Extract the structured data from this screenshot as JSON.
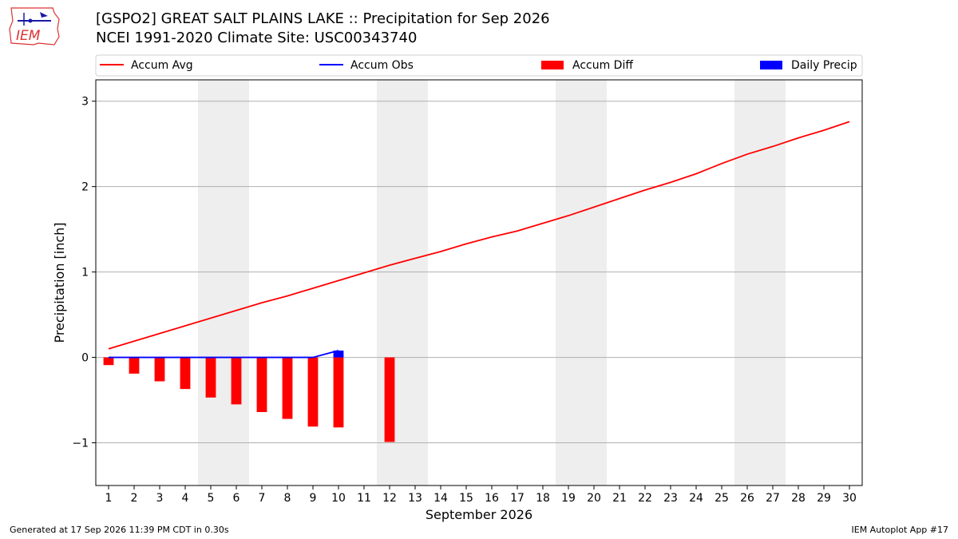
{
  "header": {
    "title_line1": "[GSPO2] GREAT SALT PLAINS LAKE :: Precipitation for Sep 2026",
    "title_line2": "NCEI 1991-2020 Climate Site: USC00343740"
  },
  "logo": {
    "text": "IEM"
  },
  "footer": {
    "generated": "Generated at 17 Sep 2026 11:39 PM CDT in 0.30s",
    "app": "IEM Autoplot App #17"
  },
  "colors": {
    "avg": "#ff0000",
    "obs": "#0000ff",
    "diff": "#ff0000",
    "daily": "#0000ff",
    "weekend": "#eeeeee",
    "grid": "#b0b0b0"
  },
  "chart_data": {
    "type": "line",
    "xlabel": "September 2026",
    "ylabel": "Precipitation [inch]",
    "xlim": [
      0.5,
      30.5
    ],
    "ylim": [
      -1.5,
      3.25
    ],
    "yticks": [
      -1,
      0,
      1,
      2,
      3
    ],
    "ytick_labels": [
      "−1",
      "0",
      "1",
      "2",
      "3"
    ],
    "days": [
      1,
      2,
      3,
      4,
      5,
      6,
      7,
      8,
      9,
      10,
      11,
      12,
      13,
      14,
      15,
      16,
      17,
      18,
      19,
      20,
      21,
      22,
      23,
      24,
      25,
      26,
      27,
      28,
      29,
      30
    ],
    "weekend_days": [
      5,
      6,
      12,
      13,
      19,
      20,
      26,
      27
    ],
    "legend": {
      "placement": "top",
      "entries": [
        "Accum Avg",
        "Accum Obs",
        "Accum Diff",
        "Daily Precip"
      ]
    },
    "grid": "horizontal",
    "series": [
      {
        "name": "Accum Avg",
        "type": "line",
        "x": [
          1,
          2,
          3,
          4,
          5,
          6,
          7,
          8,
          9,
          10,
          11,
          12,
          13,
          14,
          15,
          16,
          17,
          18,
          19,
          20,
          21,
          22,
          23,
          24,
          25,
          26,
          27,
          28,
          29,
          30
        ],
        "values": [
          0.1,
          0.19,
          0.28,
          0.37,
          0.46,
          0.55,
          0.64,
          0.72,
          0.81,
          0.9,
          0.99,
          1.08,
          1.16,
          1.24,
          1.33,
          1.41,
          1.48,
          1.57,
          1.66,
          1.76,
          1.86,
          1.96,
          2.05,
          2.15,
          2.27,
          2.38,
          2.47,
          2.57,
          2.66,
          2.76
        ]
      },
      {
        "name": "Accum Obs",
        "type": "line",
        "x": [
          1,
          2,
          3,
          4,
          5,
          6,
          7,
          8,
          9,
          10
        ],
        "values": [
          0,
          0,
          0,
          0,
          0,
          0,
          0,
          0,
          0,
          0.08
        ]
      },
      {
        "name": "Accum Diff",
        "type": "bar",
        "x": [
          1,
          2,
          3,
          4,
          5,
          6,
          7,
          8,
          9,
          10,
          12
        ],
        "values": [
          -0.09,
          -0.19,
          -0.28,
          -0.37,
          -0.47,
          -0.55,
          -0.64,
          -0.72,
          -0.81,
          -0.82,
          -0.99
        ]
      },
      {
        "name": "Daily Precip",
        "type": "bar",
        "x": [
          10
        ],
        "values": [
          0.08
        ]
      }
    ]
  }
}
